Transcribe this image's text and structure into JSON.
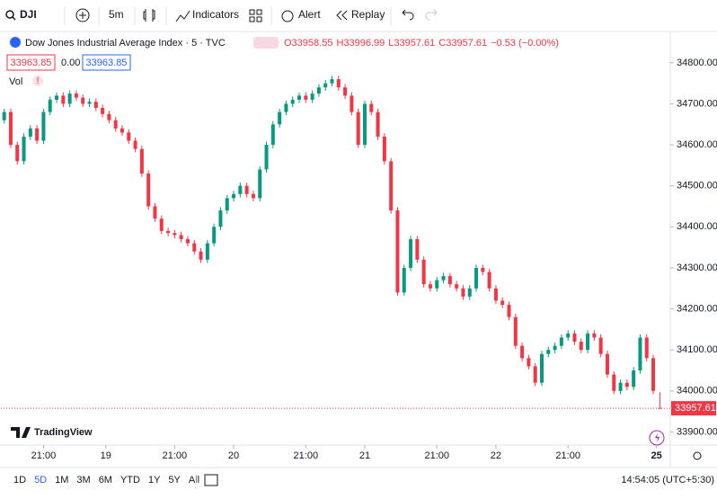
{
  "toolbar": {
    "symbol": "DJI",
    "interval": "5m",
    "indicators": "Indicators",
    "alert": "Alert",
    "replay": "Replay"
  },
  "legend": {
    "title": "Dow Jones Industrial Average Index · 5 · TVC",
    "ohlc": [
      "O33958.55",
      "H33996.99",
      "L33957.61",
      "C33957.61",
      "−0.53 (−0.00%)"
    ],
    "bid": "33963.85",
    "spread": "0.00",
    "ask": "33963.85",
    "volume": "Vol"
  },
  "chart_data": {
    "type": "candlestick",
    "up_color": "#089981",
    "down_color": "#f23645",
    "open": [
      34660,
      34680,
      34600,
      34560,
      34620,
      34640,
      34610,
      34680,
      34710,
      34720,
      34700,
      34725,
      34715,
      34700,
      34705,
      34690,
      34675,
      34660,
      34640,
      34630,
      34610,
      34590,
      34530,
      34450,
      34420,
      34390,
      34385,
      34380,
      34370,
      34360,
      34340,
      34320,
      34360,
      34400,
      34440,
      34470,
      34480,
      34500,
      34480,
      34470,
      34540,
      34600,
      34650,
      34680,
      34700,
      34710,
      34720,
      34710,
      34725,
      34740,
      34750,
      34760,
      34740,
      34720,
      34680,
      34600,
      34700,
      34680,
      34620,
      34560,
      34440,
      34240,
      34300,
      34370,
      34320,
      34260,
      34250,
      34270,
      34280,
      34260,
      34250,
      34230,
      34250,
      34300,
      34290,
      34250,
      34220,
      34210,
      34180,
      34110,
      34080,
      34060,
      34020,
      34090,
      34100,
      34110,
      34130,
      34140,
      34120,
      34100,
      34140,
      34130,
      34090,
      34040,
      34000,
      34020,
      34010,
      34050,
      34130,
      34080,
      33958.55
    ],
    "high": [
      34688,
      34688,
      34608,
      34628,
      34648,
      34648,
      34688,
      34718,
      34728,
      34728,
      34733,
      34733,
      34723,
      34713,
      34713,
      34698,
      34683,
      34668,
      34648,
      34638,
      34618,
      34598,
      34538,
      34458,
      34428,
      34398,
      34393,
      34388,
      34378,
      34368,
      34348,
      34368,
      34408,
      34448,
      34478,
      34488,
      34508,
      34508,
      34488,
      34548,
      34608,
      34658,
      34688,
      34708,
      34718,
      34728,
      34728,
      34733,
      34748,
      34758,
      34768,
      34768,
      34748,
      34728,
      34688,
      34708,
      34708,
      34688,
      34628,
      34568,
      34448,
      34308,
      34378,
      34378,
      34328,
      34268,
      34278,
      34288,
      34288,
      34268,
      34258,
      34258,
      34308,
      34308,
      34298,
      34258,
      34228,
      34218,
      34188,
      34118,
      34088,
      34068,
      34098,
      34108,
      34118,
      34138,
      34148,
      34148,
      34128,
      34148,
      34148,
      34138,
      34098,
      34048,
      34028,
      34028,
      34058,
      34138,
      34138,
      34088,
      33996.99
    ],
    "low": [
      34652,
      34592,
      34552,
      34552,
      34612,
      34602,
      34602,
      34672,
      34702,
      34692,
      34692,
      34707,
      34692,
      34692,
      34682,
      34667,
      34652,
      34632,
      34622,
      34602,
      34582,
      34522,
      34442,
      34412,
      34382,
      34377,
      34372,
      34362,
      34352,
      34332,
      34312,
      34312,
      34352,
      34392,
      34432,
      34462,
      34472,
      34472,
      34462,
      34462,
      34532,
      34592,
      34642,
      34672,
      34692,
      34702,
      34702,
      34702,
      34717,
      34732,
      34742,
      34732,
      34712,
      34672,
      34592,
      34592,
      34672,
      34612,
      34552,
      34432,
      34232,
      34232,
      34292,
      34312,
      34252,
      34242,
      34242,
      34262,
      34252,
      34242,
      34222,
      34222,
      34242,
      34282,
      34242,
      34212,
      34202,
      34172,
      34102,
      34072,
      34052,
      34012,
      34012,
      34082,
      34092,
      34102,
      34122,
      34112,
      34092,
      34092,
      34122,
      34082,
      34032,
      33992,
      33992,
      34002,
      34002,
      34042,
      34072,
      33992,
      33957.61
    ],
    "close": [
      34680,
      34600,
      34560,
      34620,
      34640,
      34610,
      34680,
      34710,
      34720,
      34700,
      34725,
      34715,
      34700,
      34705,
      34690,
      34675,
      34660,
      34640,
      34630,
      34610,
      34590,
      34530,
      34450,
      34420,
      34390,
      34385,
      34380,
      34370,
      34360,
      34340,
      34320,
      34360,
      34400,
      34440,
      34470,
      34480,
      34500,
      34480,
      34470,
      34540,
      34600,
      34650,
      34680,
      34700,
      34710,
      34720,
      34710,
      34725,
      34740,
      34750,
      34760,
      34740,
      34720,
      34680,
      34600,
      34700,
      34680,
      34620,
      34560,
      34440,
      34240,
      34300,
      34370,
      34320,
      34260,
      34250,
      34270,
      34280,
      34260,
      34250,
      34230,
      34250,
      34300,
      34290,
      34250,
      34220,
      34210,
      34180,
      34110,
      34080,
      34060,
      34020,
      34090,
      34100,
      34110,
      34130,
      34140,
      34120,
      34100,
      34140,
      34130,
      34090,
      34040,
      34000,
      34020,
      34010,
      34050,
      34130,
      34080,
      34000,
      33957.61
    ],
    "xlim": [
      -0.5,
      100.5
    ],
    "xticks": [
      {
        "value": 6,
        "label": "21:00"
      },
      {
        "value": 15.5,
        "label": "19"
      },
      {
        "value": 26,
        "label": "21:00"
      },
      {
        "value": 35,
        "label": "20"
      },
      {
        "value": 46,
        "label": "21:00"
      },
      {
        "value": 55,
        "label": "21"
      },
      {
        "value": 66,
        "label": "21:00"
      },
      {
        "value": 75,
        "label": "22"
      },
      {
        "value": 86,
        "label": "21:00"
      },
      {
        "value": 99.5,
        "label": "25"
      }
    ],
    "ylim": [
      33868,
      34872
    ],
    "yticks": [
      {
        "value": 33900,
        "label": "33900.00"
      },
      {
        "value": 34000,
        "label": "34000.00"
      },
      {
        "value": 34100,
        "label": "34100.00"
      },
      {
        "value": 34200,
        "label": "34200.00"
      },
      {
        "value": 34300,
        "label": "34300.00"
      },
      {
        "value": 34400,
        "label": "34400.00"
      },
      {
        "value": 34500,
        "label": "34500.00"
      },
      {
        "value": 34600,
        "label": "34600.00"
      },
      {
        "value": 34700,
        "label": "34700.00"
      },
      {
        "value": 34800,
        "label": "34800.00"
      }
    ]
  },
  "watermark": "TradingView",
  "bottom_bar": {
    "ranges": [
      "1D",
      "5D",
      "1M",
      "3M",
      "6M",
      "YTD",
      "1Y",
      "5Y",
      "All"
    ],
    "clock": "14:54:05 (UTC+5:30)"
  }
}
